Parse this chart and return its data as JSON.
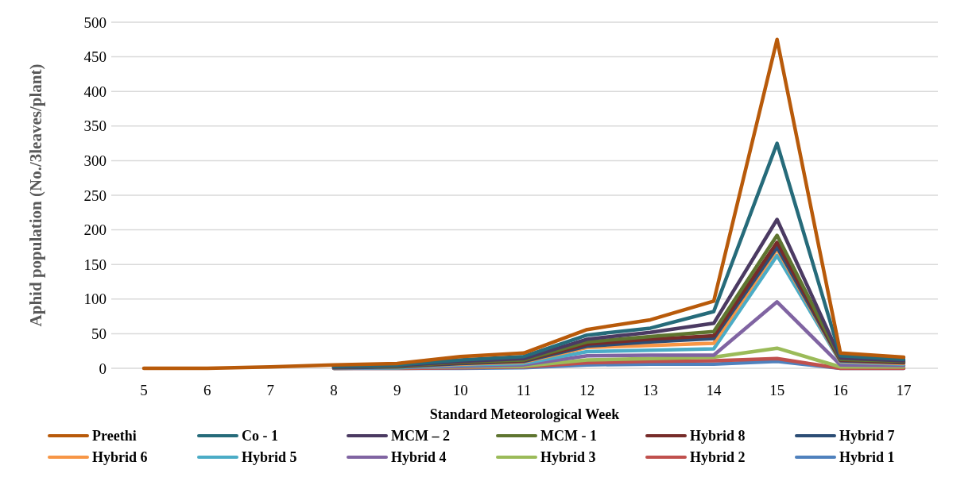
{
  "chart_data": {
    "type": "line",
    "xlabel": "Standard Meteorological Week",
    "ylabel": "Aphid population (No./3leaves/plant)",
    "categories": [
      "5",
      "6",
      "7",
      "8",
      "9",
      "10",
      "11",
      "12",
      "13",
      "14",
      "15",
      "16",
      "17"
    ],
    "ylim": [
      0,
      500
    ],
    "yticks": [
      0,
      50,
      100,
      150,
      200,
      250,
      300,
      350,
      400,
      450,
      500
    ],
    "grid": "y",
    "legend": "bottom",
    "marker": "none",
    "line_style": "solid",
    "series": [
      {
        "name": "Preethi",
        "color": "#b85a0a",
        "values": [
          0,
          0,
          2,
          5,
          7,
          17,
          22,
          56,
          70,
          97,
          475,
          22,
          16
        ]
      },
      {
        "name": "Co - 1",
        "color": "#266b7a",
        "values": [
          null,
          null,
          null,
          3,
          5,
          12,
          17,
          48,
          58,
          82,
          325,
          18,
          13
        ]
      },
      {
        "name": "MCM – 2",
        "color": "#4b3a62",
        "values": [
          null,
          null,
          null,
          2,
          4,
          10,
          14,
          42,
          52,
          65,
          215,
          15,
          11
        ]
      },
      {
        "name": "MCM - 1",
        "color": "#5f7530",
        "values": [
          null,
          null,
          null,
          2,
          3,
          9,
          12,
          38,
          46,
          53,
          192,
          13,
          10
        ]
      },
      {
        "name": "Hybrid 8",
        "color": "#772c2a",
        "values": [
          null,
          null,
          null,
          2,
          3,
          8,
          11,
          35,
          42,
          47,
          182,
          12,
          9
        ]
      },
      {
        "name": "Hybrid 7",
        "color": "#2c4d75",
        "values": [
          null,
          null,
          null,
          1,
          2,
          7,
          10,
          32,
          38,
          43,
          175,
          11,
          8
        ]
      },
      {
        "name": "Hybrid 6",
        "color": "#f79646",
        "values": [
          null,
          null,
          null,
          1,
          2,
          6,
          9,
          30,
          33,
          36,
          172,
          10,
          7
        ]
      },
      {
        "name": "Hybrid 5",
        "color": "#4bacc6",
        "values": [
          null,
          null,
          null,
          1,
          1,
          5,
          7,
          24,
          26,
          28,
          163,
          9,
          6
        ]
      },
      {
        "name": "Hybrid 4",
        "color": "#8064a2",
        "values": [
          null,
          null,
          null,
          0,
          1,
          3,
          5,
          18,
          19,
          19,
          96,
          5,
          4
        ]
      },
      {
        "name": "Hybrid 3",
        "color": "#9bbb59",
        "values": [
          null,
          null,
          null,
          0,
          1,
          2,
          3,
          12,
          14,
          16,
          29,
          2,
          2
        ]
      },
      {
        "name": "Hybrid 2",
        "color": "#c0504d",
        "values": [
          null,
          null,
          null,
          0,
          0,
          1,
          2,
          8,
          10,
          11,
          14,
          0,
          0
        ]
      },
      {
        "name": "Hybrid 1",
        "color": "#4f81bd",
        "values": [
          null,
          null,
          null,
          0,
          0,
          0,
          1,
          5,
          6,
          6,
          10,
          0,
          0
        ]
      }
    ]
  }
}
